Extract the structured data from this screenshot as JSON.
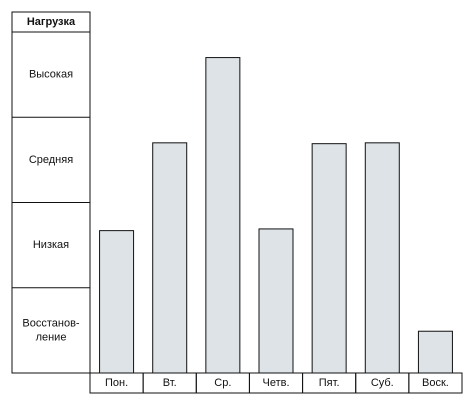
{
  "chart_data": {
    "type": "bar",
    "y_label": "Нагрузка",
    "categories": [
      "Пон.",
      "Вт.",
      "Ср.",
      "Четв.",
      "Пят.",
      "Суб.",
      "Воск."
    ],
    "values": [
      1.67,
      2.7,
      3.7,
      1.69,
      2.69,
      2.7,
      0.49
    ],
    "color": "#dde3e6",
    "ylim": [
      0,
      4
    ],
    "yticks": [
      {
        "value": 0.5,
        "label": "Восстанов-\nление"
      },
      {
        "value": 1.5,
        "label": "Низкая"
      },
      {
        "value": 2.5,
        "label": "Средняя"
      },
      {
        "value": 3.5,
        "label": "Высокая"
      }
    ]
  }
}
